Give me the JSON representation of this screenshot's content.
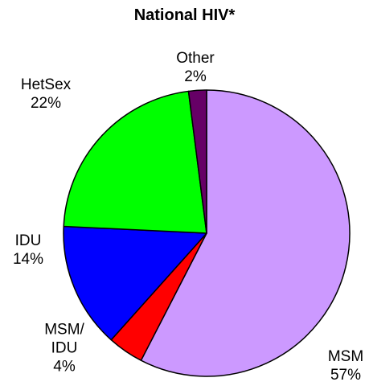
{
  "chart_data": {
    "type": "pie",
    "title": "National HIV*",
    "categories": [
      "MSM",
      "MSM/\nIDU",
      "IDU",
      "HetSex",
      "Other"
    ],
    "values": [
      57,
      4,
      14,
      22,
      2
    ],
    "value_labels": [
      "57%",
      "4%",
      "14%",
      "22%",
      "2%"
    ],
    "colors": [
      "#cc99ff",
      "#ff0000",
      "#0000ff",
      "#00ff00",
      "#660066"
    ]
  }
}
